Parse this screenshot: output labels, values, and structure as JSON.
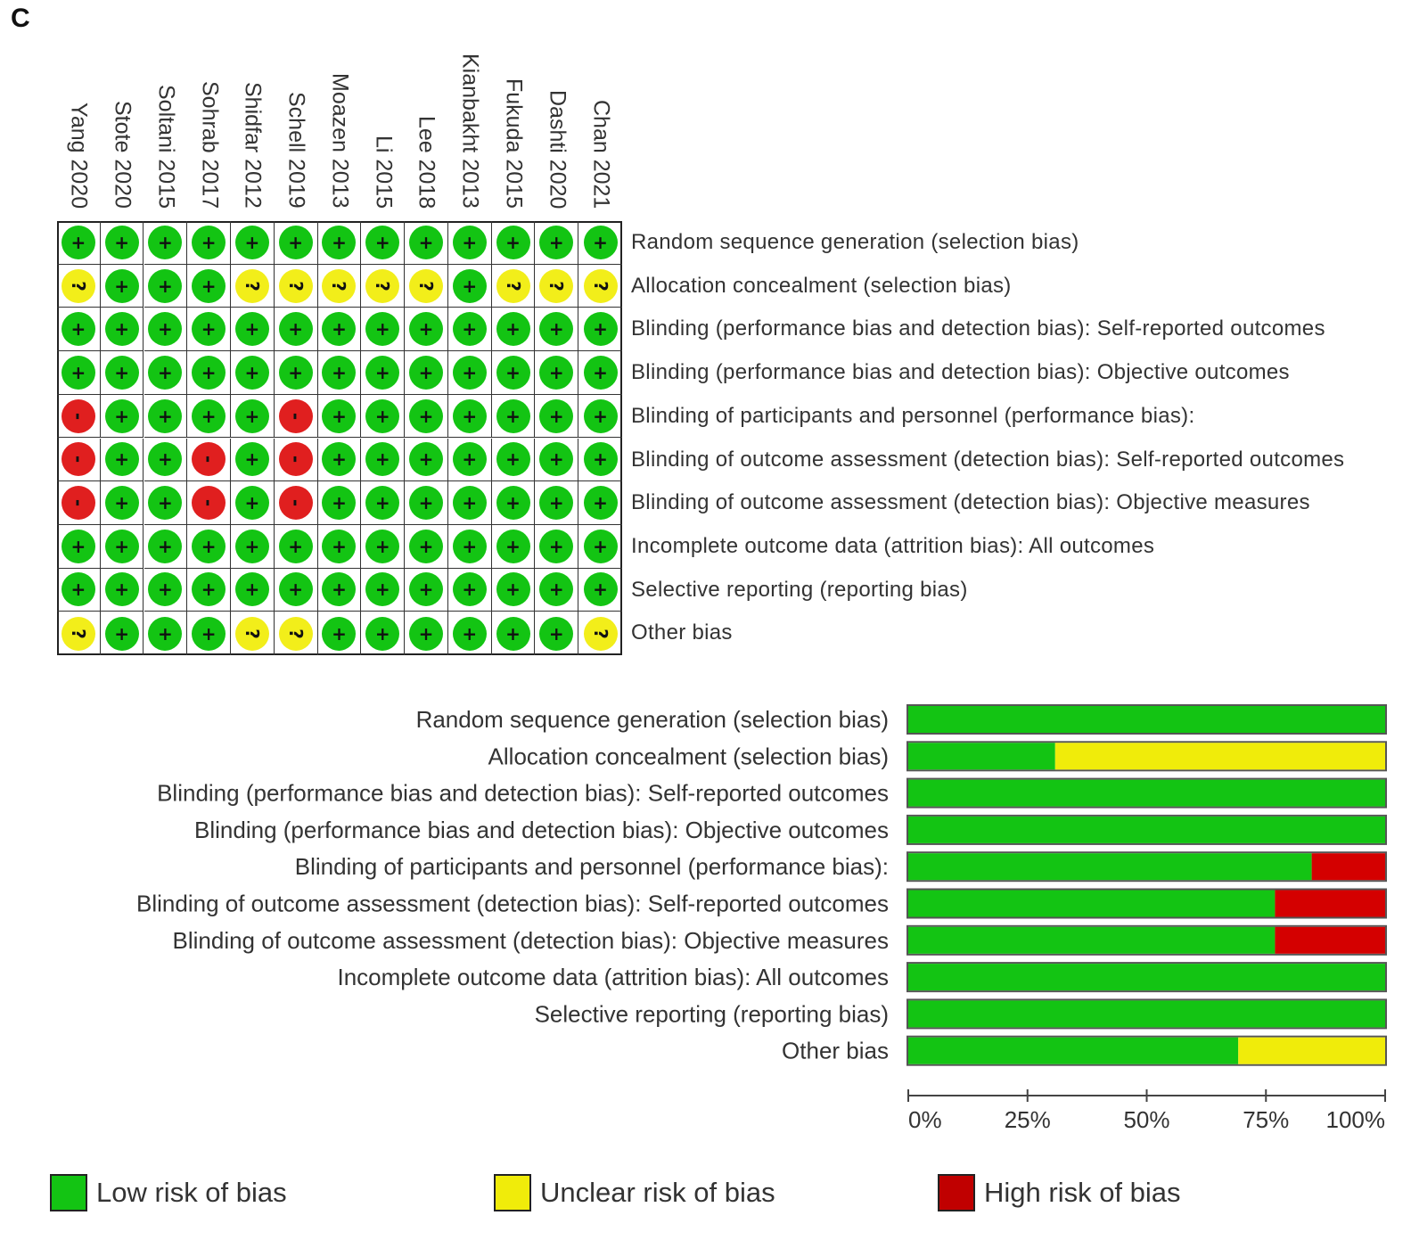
{
  "panel_label": "C",
  "colors": {
    "low": "#13c413",
    "unclear": "#f0ec0a",
    "high": "#d40000",
    "high_legend": "#c00000",
    "dot_high": "#e01f1f",
    "dot_unclear": "#f2ee1a"
  },
  "studies": [
    "Yang 2020",
    "Stote 2020",
    "Soltani 2015",
    "Sohrab 2017",
    "Shidfar 2012",
    "Schell 2019",
    "Moazen 2013",
    "Li 2015",
    "Lee 2018",
    "Kianbakht 2013",
    "Fukuda 2015",
    "Dashti 2020",
    "Chan 2021"
  ],
  "domains_summary": [
    "Random sequence generation (selection bias)",
    "Allocation concealment (selection bias)",
    "Blinding (performance bias and detection bias): Self-reported outcomes",
    "Blinding (performance bias and detection bias): Objective outcomes",
    "Blinding of participants and personnel (performance bias):",
    "Blinding of outcome assessment (detection bias): Self-reported outcomes",
    "Blinding of outcome assessment (detection bias): Objective measures",
    "Incomplete outcome data (attrition bias): All outcomes",
    "Selective reporting (reporting bias)",
    "Other bias"
  ],
  "symbols": {
    "low": "+",
    "unclear": "?",
    "high": "-"
  },
  "judgements": [
    [
      "low",
      "low",
      "low",
      "low",
      "low",
      "low",
      "low",
      "low",
      "low",
      "low",
      "low",
      "low",
      "low"
    ],
    [
      "unclear",
      "low",
      "low",
      "low",
      "unclear",
      "unclear",
      "unclear",
      "unclear",
      "unclear",
      "low",
      "unclear",
      "unclear",
      "unclear"
    ],
    [
      "low",
      "low",
      "low",
      "low",
      "low",
      "low",
      "low",
      "low",
      "low",
      "low",
      "low",
      "low",
      "low"
    ],
    [
      "low",
      "low",
      "low",
      "low",
      "low",
      "low",
      "low",
      "low",
      "low",
      "low",
      "low",
      "low",
      "low"
    ],
    [
      "high",
      "low",
      "low",
      "low",
      "low",
      "high",
      "low",
      "low",
      "low",
      "low",
      "low",
      "low",
      "low"
    ],
    [
      "high",
      "low",
      "low",
      "high",
      "low",
      "high",
      "low",
      "low",
      "low",
      "low",
      "low",
      "low",
      "low"
    ],
    [
      "high",
      "low",
      "low",
      "high",
      "low",
      "high",
      "low",
      "low",
      "low",
      "low",
      "low",
      "low",
      "low"
    ],
    [
      "low",
      "low",
      "low",
      "low",
      "low",
      "low",
      "low",
      "low",
      "low",
      "low",
      "low",
      "low",
      "low"
    ],
    [
      "low",
      "low",
      "low",
      "low",
      "low",
      "low",
      "low",
      "low",
      "low",
      "low",
      "low",
      "low",
      "low"
    ],
    [
      "unclear",
      "low",
      "low",
      "low",
      "unclear",
      "unclear",
      "low",
      "low",
      "low",
      "low",
      "low",
      "low",
      "unclear"
    ]
  ],
  "chart_data": {
    "type": "bar",
    "orientation": "horizontal-stacked",
    "categories": [
      "Random sequence generation (selection bias)",
      "Allocation concealment (selection bias)",
      "Blinding (performance bias and detection bias): Self-reported outcomes",
      "Blinding (performance bias and detection bias): Objective outcomes",
      "Blinding of participants and personnel (performance bias):",
      "Blinding of outcome assessment (detection bias): Self-reported outcomes",
      "Blinding of outcome assessment (detection bias): Objective measures",
      "Incomplete outcome data (attrition bias): All outcomes",
      "Selective reporting (reporting bias)",
      "Other bias"
    ],
    "series": [
      {
        "name": "Low risk of bias",
        "key": "low",
        "values": [
          100,
          30.8,
          100,
          100,
          84.6,
          76.9,
          76.9,
          100,
          100,
          69.2
        ]
      },
      {
        "name": "Unclear risk of bias",
        "key": "unclear",
        "values": [
          0,
          69.2,
          0,
          0,
          0,
          0,
          0,
          0,
          0,
          30.8
        ]
      },
      {
        "name": "High risk of bias",
        "key": "high",
        "values": [
          0,
          0,
          0,
          0,
          15.4,
          23.1,
          23.1,
          0,
          0,
          0
        ]
      }
    ],
    "xlim": [
      0,
      100
    ],
    "x_ticks": [
      "0%",
      "25%",
      "50%",
      "75%",
      "100%"
    ],
    "legend_position": "bottom"
  },
  "legend": [
    {
      "key": "low",
      "label": "Low risk of bias"
    },
    {
      "key": "unclear",
      "label": "Unclear risk of bias"
    },
    {
      "key": "high",
      "label": "High risk of bias"
    }
  ]
}
